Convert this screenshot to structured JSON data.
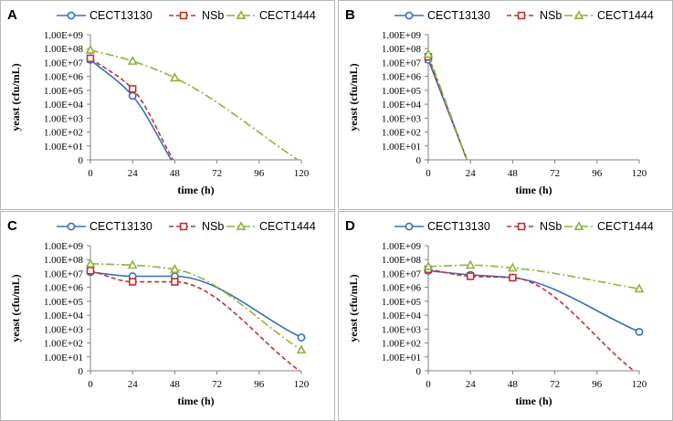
{
  "figure": {
    "series_colors": {
      "CECT13130": "#3a6ebf",
      "NSb": "#c0302f",
      "CECT1444": "#8fb33a"
    },
    "series_markers": {
      "CECT13130": "circle",
      "NSb": "square",
      "CECT1444": "triangle"
    },
    "series_dash": {
      "CECT13130": "solid",
      "NSb": "dashed",
      "CECT1444": "dash-dot"
    }
  },
  "chart_data": [
    {
      "type": "line",
      "panel": "A",
      "xlabel": "time (h)",
      "ylabel": "yeast (cfu/mL)",
      "x_ticks": [
        0,
        24,
        48,
        72,
        96,
        120
      ],
      "y_ticks": [
        "0",
        "1.00E+01",
        "1.00E+02",
        "1.00E+03",
        "1.00E+04",
        "1.00E+05",
        "1.00E+06",
        "1.00E+07",
        "1.00E+08",
        "1.00E+09"
      ],
      "ylim_log10": [
        0,
        9
      ],
      "xlim": [
        0,
        120
      ],
      "series": [
        {
          "name": "CECT13130",
          "x": [
            0,
            24,
            46
          ],
          "log10": [
            7.2,
            4.6,
            0
          ],
          "markers": [
            true,
            true,
            false
          ]
        },
        {
          "name": "NSb",
          "x": [
            0,
            24,
            47
          ],
          "log10": [
            7.3,
            5.1,
            0
          ],
          "markers": [
            true,
            true,
            false
          ]
        },
        {
          "name": "CECT1444",
          "x": [
            0,
            24,
            48,
            118
          ],
          "log10": [
            7.9,
            7.1,
            5.9,
            0
          ],
          "markers": [
            true,
            true,
            true,
            false
          ]
        }
      ]
    },
    {
      "type": "line",
      "panel": "B",
      "xlabel": "time (h)",
      "ylabel": "yeast (cfu/mL)",
      "x_ticks": [
        0,
        24,
        48,
        72,
        96,
        120
      ],
      "y_ticks": [
        "0",
        "1.00E+01",
        "1.00E+02",
        "1.00E+03",
        "1.00E+04",
        "1.00E+05",
        "1.00E+06",
        "1.00E+07",
        "1.00E+08",
        "1.00E+09"
      ],
      "ylim_log10": [
        0,
        9
      ],
      "xlim": [
        0,
        120
      ],
      "series": [
        {
          "name": "CECT13130",
          "x": [
            0,
            22
          ],
          "log10": [
            7.2,
            0
          ],
          "markers": [
            true,
            false
          ]
        },
        {
          "name": "NSb",
          "x": [
            0,
            22
          ],
          "log10": [
            7.4,
            0
          ],
          "markers": [
            true,
            false
          ]
        },
        {
          "name": "CECT1444",
          "x": [
            0,
            22
          ],
          "log10": [
            7.6,
            0
          ],
          "markers": [
            true,
            false
          ]
        }
      ]
    },
    {
      "type": "line",
      "panel": "C",
      "xlabel": "time (h)",
      "ylabel": "yeast (cfu/mL)",
      "x_ticks": [
        0,
        24,
        48,
        72,
        96,
        120
      ],
      "y_ticks": [
        "0",
        "1.00E+01",
        "1.00E+02",
        "1.00E+03",
        "1.00E+04",
        "1.00E+05",
        "1.00E+06",
        "1.00E+07",
        "1.00E+08",
        "1.00E+09"
      ],
      "ylim_log10": [
        0,
        9
      ],
      "xlim": [
        0,
        120
      ],
      "series": [
        {
          "name": "CECT13130",
          "x": [
            0,
            24,
            48,
            120
          ],
          "log10": [
            7.1,
            6.8,
            6.8,
            2.4
          ],
          "markers": [
            true,
            true,
            true,
            true
          ]
        },
        {
          "name": "NSb",
          "x": [
            0,
            24,
            48,
            119
          ],
          "log10": [
            7.2,
            6.4,
            6.4,
            0
          ],
          "markers": [
            true,
            true,
            true,
            false
          ]
        },
        {
          "name": "CECT1444",
          "x": [
            0,
            24,
            48,
            120
          ],
          "log10": [
            7.7,
            7.6,
            7.3,
            1.5
          ],
          "markers": [
            true,
            true,
            true,
            true
          ]
        }
      ]
    },
    {
      "type": "line",
      "panel": "D",
      "xlabel": "time (h)",
      "ylabel": "yeast (cfu/mL)",
      "x_ticks": [
        0,
        24,
        48,
        72,
        96,
        120
      ],
      "y_ticks": [
        "0",
        "1.00E+01",
        "1.00E+02",
        "1.00E+03",
        "1.00E+04",
        "1.00E+05",
        "1.00E+06",
        "1.00E+07",
        "1.00E+08",
        "1.00E+09"
      ],
      "ylim_log10": [
        0,
        9
      ],
      "xlim": [
        0,
        120
      ],
      "series": [
        {
          "name": "CECT13130",
          "x": [
            0,
            24,
            48,
            120
          ],
          "log10": [
            7.2,
            6.9,
            6.7,
            2.8
          ],
          "markers": [
            true,
            true,
            true,
            true
          ]
        },
        {
          "name": "NSb",
          "x": [
            0,
            24,
            48,
            117
          ],
          "log10": [
            7.3,
            6.8,
            6.7,
            0
          ],
          "markers": [
            true,
            true,
            true,
            false
          ]
        },
        {
          "name": "CECT1444",
          "x": [
            0,
            24,
            48,
            120
          ],
          "log10": [
            7.5,
            7.6,
            7.4,
            5.9
          ],
          "markers": [
            true,
            true,
            true,
            true
          ]
        }
      ]
    }
  ]
}
